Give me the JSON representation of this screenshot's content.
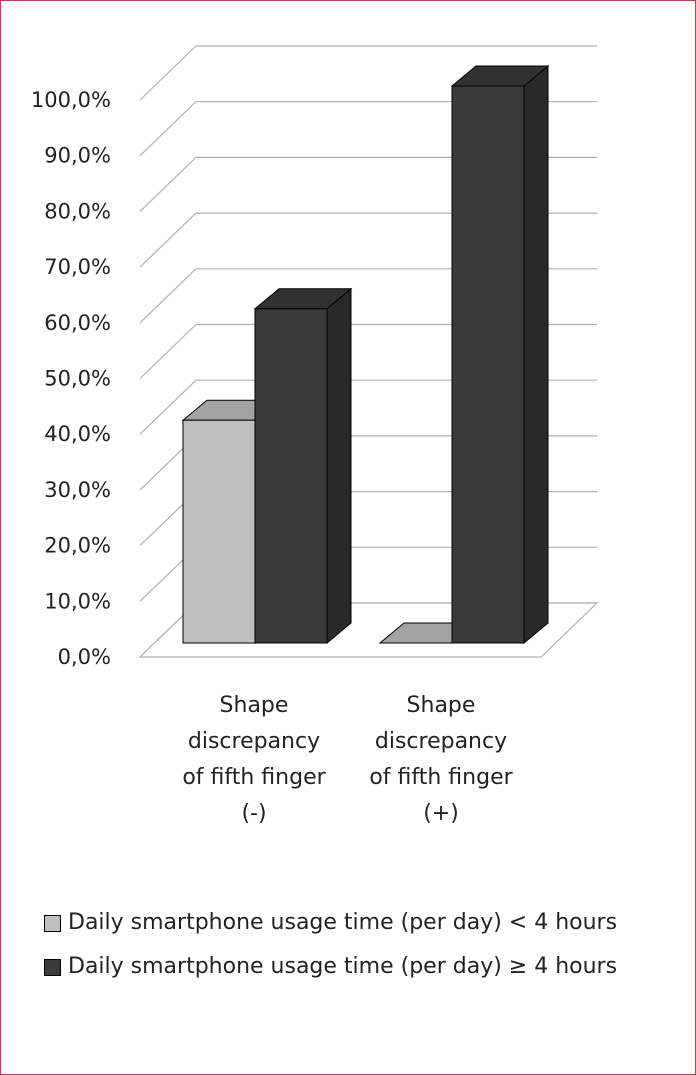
{
  "chart_data": {
    "type": "bar",
    "categories": [
      "Shape discrepancy of fifth finger (-)",
      "Shape discrepancy of fifth finger (+)"
    ],
    "category_lines": [
      [
        "Shape",
        "discrepancy",
        "of fifth finger",
        "(-)"
      ],
      [
        "Shape",
        "discrepancy",
        "of fifth finger",
        "(+)"
      ]
    ],
    "series": [
      {
        "name": "Daily smartphone usage time (per day) < 4 hours",
        "values": [
          40.0,
          0.0
        ],
        "color": "#c0c0c0"
      },
      {
        "name": "Daily smartphone usage time (per day) ≥ 4 hours",
        "values": [
          60.0,
          100.0
        ],
        "color": "#3a3a3a"
      }
    ],
    "ylim": [
      0,
      100
    ],
    "yticks": [
      "0,0%",
      "10,0%",
      "20,0%",
      "30,0%",
      "40,0%",
      "50,0%",
      "60,0%",
      "70,0%",
      "80,0%",
      "90,0%",
      "100,0%"
    ],
    "grid": true,
    "legend_position": "bottom",
    "style": "3d-clustered-column"
  }
}
